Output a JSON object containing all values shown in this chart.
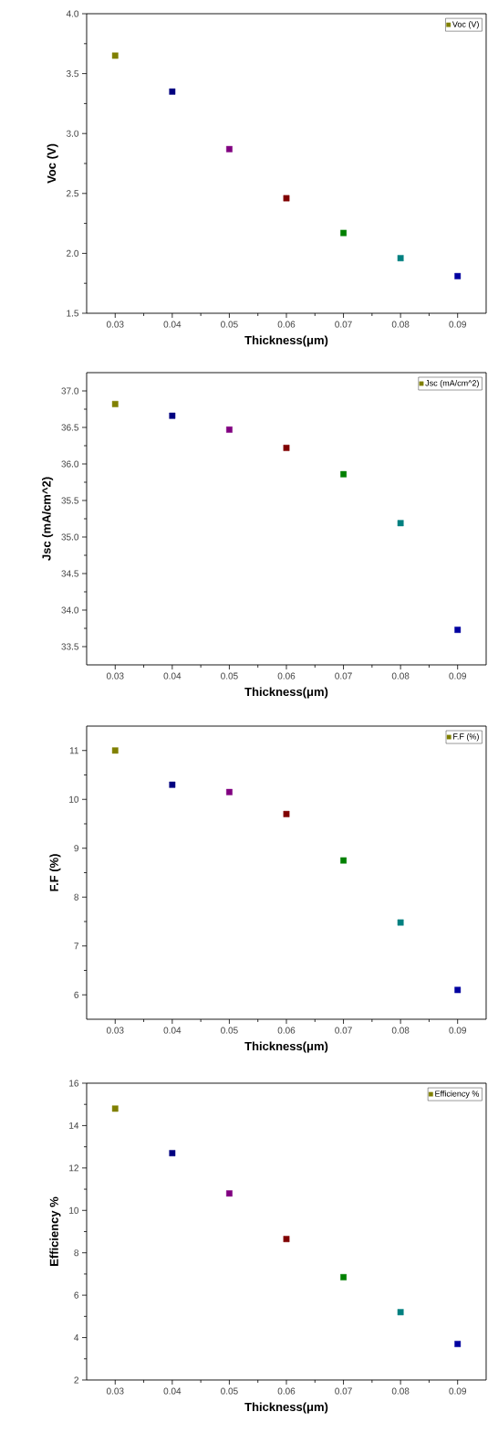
{
  "chart_data": [
    {
      "type": "scatter",
      "xlabel": "Thickness(μm)",
      "ylabel": "Voc (V)",
      "x": [
        0.03,
        0.04,
        0.05,
        0.06,
        0.07,
        0.08,
        0.09
      ],
      "series": [
        {
          "name": "Voc (V)",
          "color": "#808000",
          "colors": [
            "#808000",
            "#000080",
            "#800080",
            "#800000",
            "#008000",
            "#008080",
            "#0000a0"
          ],
          "values": [
            3.65,
            3.35,
            2.87,
            2.46,
            2.17,
            1.96,
            1.81
          ]
        }
      ],
      "xlim": [
        0.025,
        0.095
      ],
      "xticks": [
        0.03,
        0.04,
        0.05,
        0.06,
        0.07,
        0.08,
        0.09
      ],
      "ylim": [
        1.5,
        4.0
      ],
      "yticks": [
        1.5,
        {
          "value": 2,
          "label": "2.0"
        },
        2.5,
        {
          "value": 3,
          "label": "3.0"
        },
        3.5,
        {
          "value": 4,
          "label": "4.0"
        }
      ],
      "legend": "top right",
      "marker": "square"
    },
    {
      "type": "scatter",
      "xlabel": "Thickness(μm)",
      "ylabel": "Jsc (mA/cm^2)",
      "x": [
        0.03,
        0.04,
        0.05,
        0.06,
        0.07,
        0.08,
        0.09
      ],
      "series": [
        {
          "name": "Jsc (mA/cm^2)",
          "color": "#808000",
          "colors": [
            "#808000",
            "#000080",
            "#800080",
            "#800000",
            "#008000",
            "#008080",
            "#0000a0"
          ],
          "values": [
            36.82,
            36.66,
            36.47,
            36.22,
            35.86,
            35.19,
            33.73
          ]
        }
      ],
      "xlim": [
        0.025,
        0.095
      ],
      "xticks": [
        0.03,
        0.04,
        0.05,
        0.06,
        0.07,
        0.08,
        0.09
      ],
      "ylim": [
        33.25,
        37.25
      ],
      "yticks": [
        33.5,
        {
          "value": 34,
          "label": "34.0"
        },
        34.5,
        {
          "value": 35,
          "label": "35.0"
        },
        35.5,
        {
          "value": 36,
          "label": "36.0"
        },
        36.5,
        {
          "value": 37,
          "label": "37.0"
        }
      ],
      "legend": "top right",
      "marker": "square"
    },
    {
      "type": "scatter",
      "xlabel": "Thickness(μm)",
      "ylabel": "F.F (%)",
      "x": [
        0.03,
        0.04,
        0.05,
        0.06,
        0.07,
        0.08,
        0.09
      ],
      "series": [
        {
          "name": "F.F (%)",
          "color": "#808000",
          "colors": [
            "#808000",
            "#000080",
            "#800080",
            "#800000",
            "#008000",
            "#008080",
            "#0000a0"
          ],
          "values": [
            11.0,
            10.3,
            10.15,
            9.7,
            8.75,
            7.48,
            6.1
          ]
        }
      ],
      "xlim": [
        0.025,
        0.095
      ],
      "xticks": [
        0.03,
        0.04,
        0.05,
        0.06,
        0.07,
        0.08,
        0.09
      ],
      "ylim": [
        5.5,
        11.5
      ],
      "yticks": [
        6,
        7,
        8,
        9,
        10,
        11
      ],
      "legend": "top right",
      "marker": "square"
    },
    {
      "type": "scatter",
      "xlabel": "Thickness(μm)",
      "ylabel": "Efficiency %",
      "x": [
        0.03,
        0.04,
        0.05,
        0.06,
        0.07,
        0.08,
        0.09
      ],
      "series": [
        {
          "name": "Efficiency %",
          "color": "#808000",
          "colors": [
            "#808000",
            "#000080",
            "#800080",
            "#800000",
            "#008000",
            "#008080",
            "#0000a0"
          ],
          "values": [
            14.8,
            12.7,
            10.8,
            8.65,
            6.85,
            5.2,
            3.7
          ]
        }
      ],
      "xlim": [
        0.025,
        0.095
      ],
      "xticks": [
        0.03,
        0.04,
        0.05,
        0.06,
        0.07,
        0.08,
        0.09
      ],
      "ylim": [
        2,
        16
      ],
      "yticks": [
        2,
        4,
        6,
        8,
        10,
        12,
        14,
        16
      ],
      "legend": "top right",
      "marker": "square"
    }
  ]
}
